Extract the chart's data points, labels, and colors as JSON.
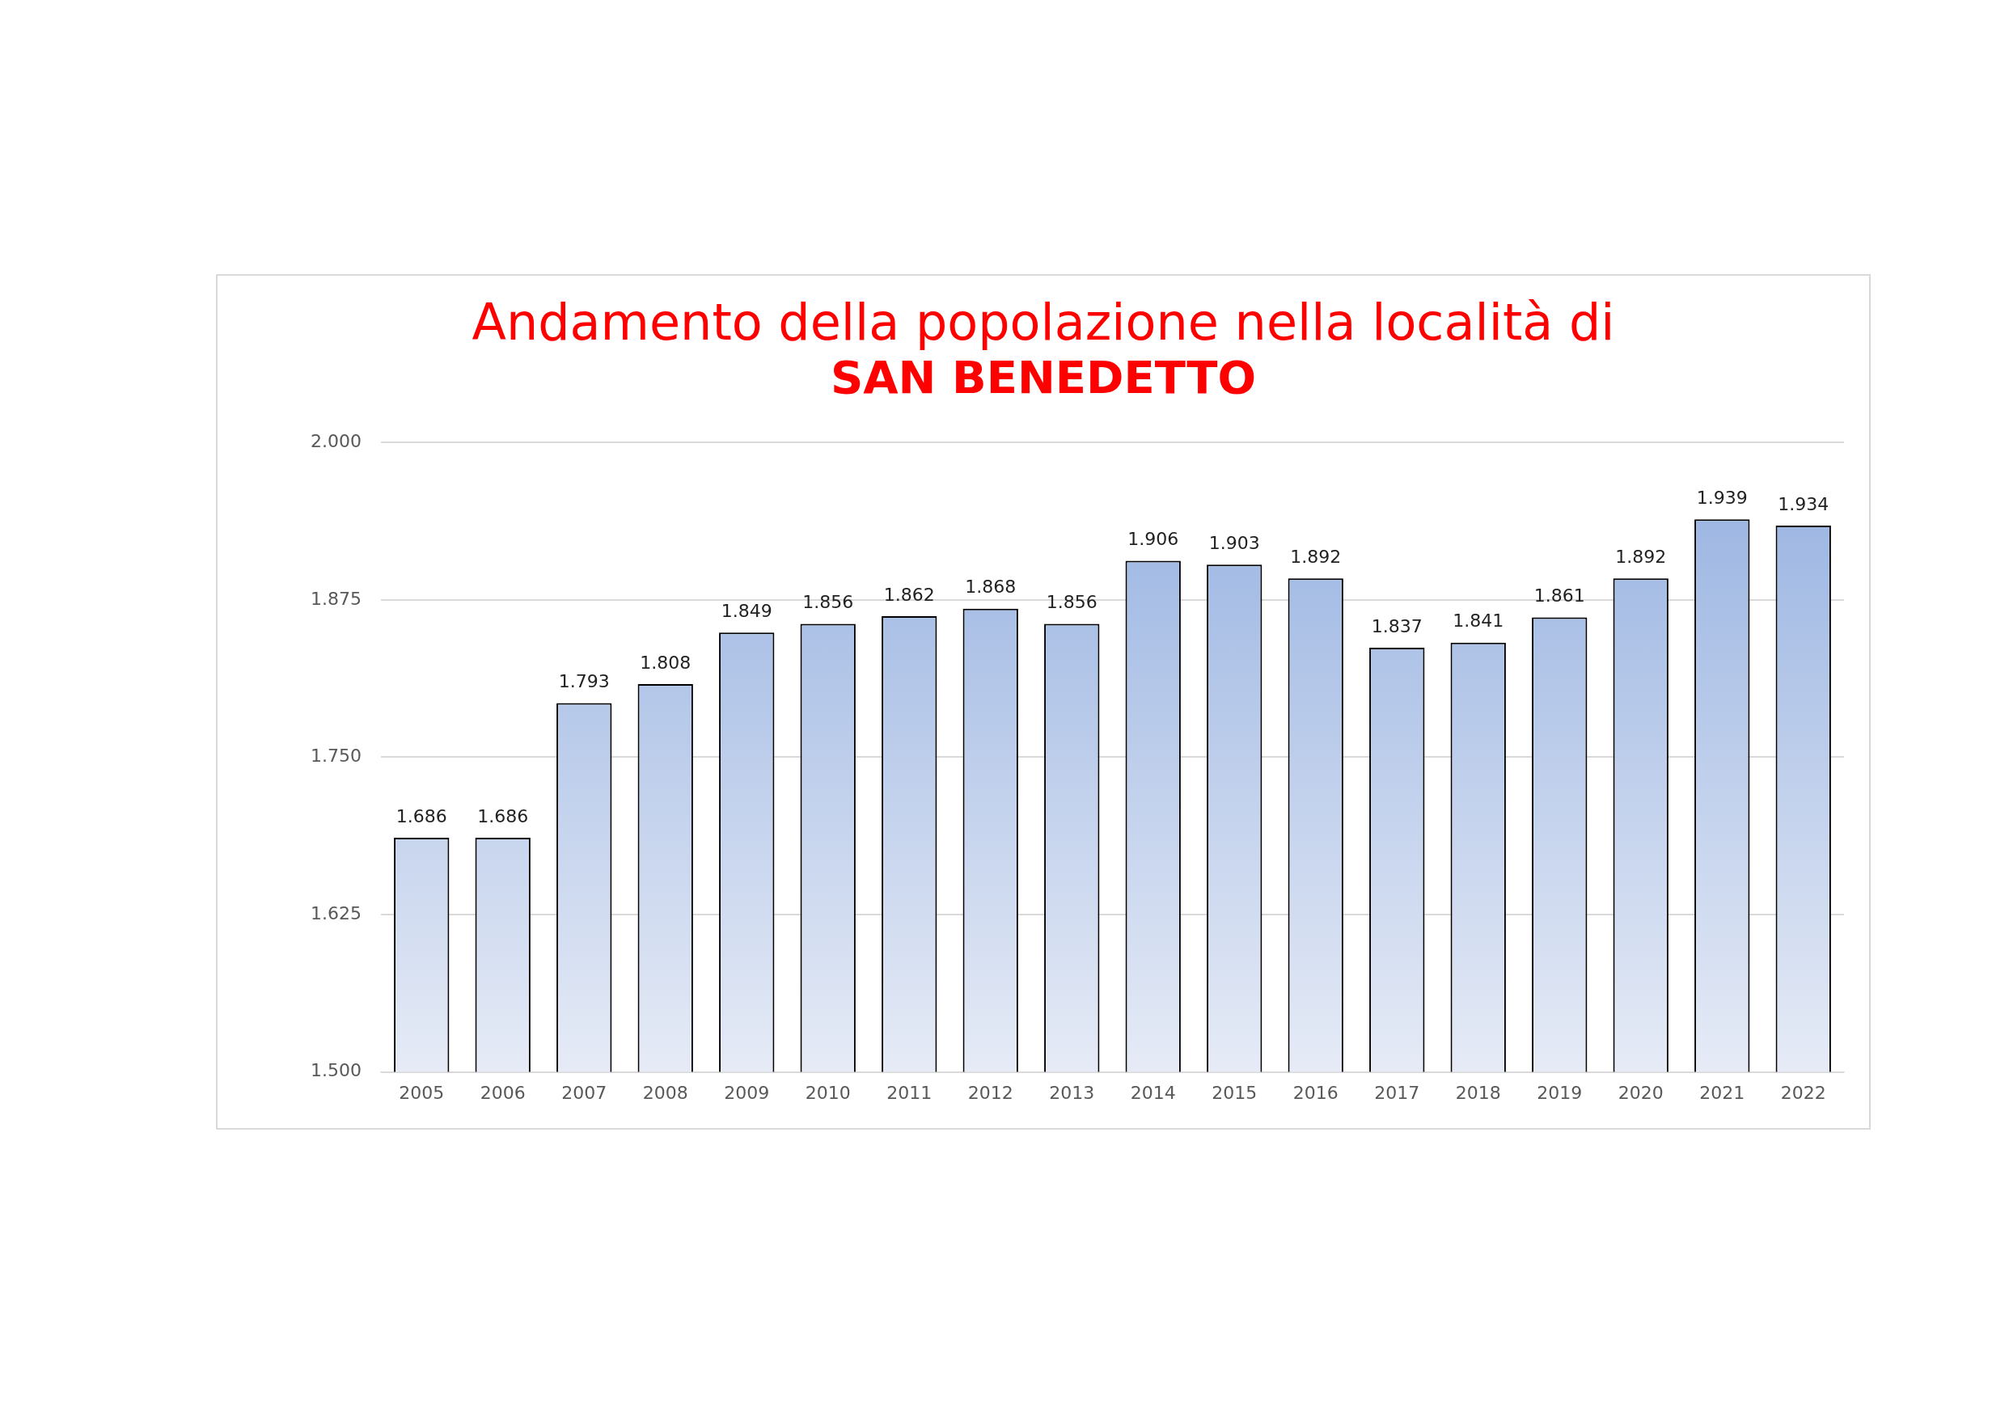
{
  "chart_data": {
    "type": "bar",
    "title": "Andamento della popolazione nella località di",
    "subtitle": "SAN BENEDETTO",
    "categories": [
      "2005",
      "2006",
      "2007",
      "2008",
      "2009",
      "2010",
      "2011",
      "2012",
      "2013",
      "2014",
      "2015",
      "2016",
      "2017",
      "2018",
      "2019",
      "2020",
      "2021",
      "2022"
    ],
    "values": [
      1686,
      1686,
      1793,
      1808,
      1849,
      1856,
      1862,
      1868,
      1856,
      1906,
      1903,
      1892,
      1837,
      1841,
      1861,
      1892,
      1939,
      1934
    ],
    "value_labels": [
      "1.686",
      "1.686",
      "1.793",
      "1.808",
      "1.849",
      "1.856",
      "1.862",
      "1.868",
      "1.856",
      "1.906",
      "1.903",
      "1.892",
      "1.837",
      "1.841",
      "1.861",
      "1.892",
      "1.939",
      "1.934"
    ],
    "color": "#94b0e0",
    "ylim": [
      1500,
      2000
    ],
    "yticks": [
      {
        "value": 1500,
        "label": "1.500"
      },
      {
        "value": 1625,
        "label": "1.625"
      },
      {
        "value": 1750,
        "label": "1.750"
      },
      {
        "value": 1875,
        "label": "1.875"
      },
      {
        "value": 2000,
        "label": "2.000"
      }
    ],
    "grid": "y",
    "legend": false
  }
}
